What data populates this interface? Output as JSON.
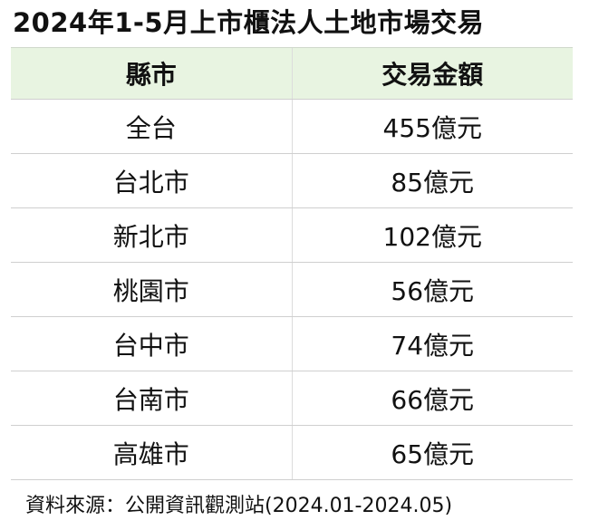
{
  "title": "2024年1-5月上市櫃法人土地市場交易",
  "table": {
    "header": [
      "縣市",
      "交易金額"
    ],
    "rows": [
      [
        "全台",
        "455億元"
      ],
      [
        "台北市",
        "85億元"
      ],
      [
        "新北市",
        "102億元"
      ],
      [
        "桃園市",
        "56億元"
      ],
      [
        "台中市",
        "74億元"
      ],
      [
        "台南市",
        "66億元"
      ],
      [
        "高雄市",
        "65億元"
      ]
    ]
  },
  "source": "資料來源：公開資訊觀測站(2024.01-2024.05)"
}
